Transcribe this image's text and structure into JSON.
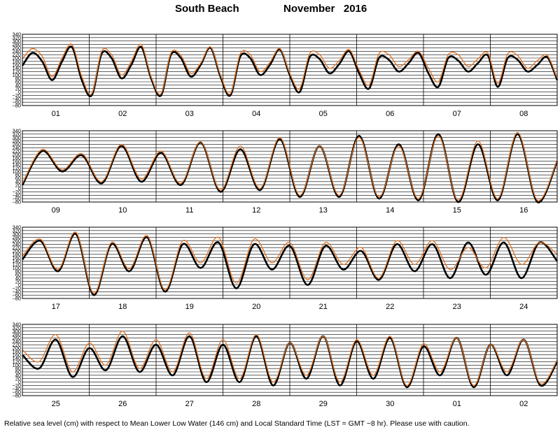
{
  "title": {
    "location": "South Beach",
    "date": "November   2016"
  },
  "footnote": "Relative sea level (cm) with respect to Mean Lower Low Water (146 cm) and Local Standard Time (LST = GMT −8 hr). Please use with caution.",
  "colors": {
    "observed": "#000000",
    "predicted": "#e07020",
    "grid": "#000000"
  },
  "chart_data": {
    "type": "line",
    "ylabel": "",
    "ylim": [
      -80,
      340
    ],
    "yticks": [
      -80,
      -60,
      -40,
      -20,
      0,
      20,
      40,
      60,
      80,
      100,
      120,
      140,
      160,
      180,
      200,
      220,
      240,
      260,
      280,
      300,
      320,
      340
    ],
    "ytick_labels": [
      "−80",
      "−60",
      "−40",
      "−20",
      "0",
      "20",
      "40",
      "60",
      "80",
      "100",
      "120",
      "140",
      "160",
      "180",
      "200",
      "220",
      "240",
      "260",
      "280",
      "300",
      "320",
      "340"
    ],
    "legend": "none",
    "grid": true,
    "series_names": [
      "observed",
      "predicted"
    ],
    "panels": [
      {
        "days": [
          "01",
          "02",
          "03",
          "04",
          "05",
          "06",
          "07",
          "08"
        ],
        "observed": [
          [
            0,
            155
          ],
          [
            1,
            230
          ],
          [
            2,
            180
          ],
          [
            3,
            70
          ],
          [
            4,
            180
          ],
          [
            5,
            265
          ],
          [
            6,
            70
          ],
          [
            7,
            -20
          ],
          [
            8,
            225
          ],
          [
            9,
            200
          ],
          [
            10,
            80
          ],
          [
            11,
            160
          ],
          [
            12,
            265
          ],
          [
            13,
            80
          ],
          [
            14,
            -20
          ],
          [
            15,
            220
          ],
          [
            16,
            200
          ],
          [
            17,
            90
          ],
          [
            18,
            160
          ],
          [
            19,
            260
          ],
          [
            20,
            90
          ],
          [
            21,
            -20
          ],
          [
            22,
            210
          ],
          [
            23,
            200
          ],
          [
            24,
            100
          ],
          [
            25,
            160
          ],
          [
            26,
            250
          ],
          [
            27,
            100
          ],
          [
            28,
            0
          ],
          [
            29,
            205
          ],
          [
            30,
            195
          ],
          [
            31,
            110
          ],
          [
            32,
            165
          ],
          [
            33,
            240
          ],
          [
            34,
            110
          ],
          [
            35,
            20
          ],
          [
            36,
            200
          ],
          [
            37,
            190
          ],
          [
            38,
            120
          ],
          [
            39,
            170
          ],
          [
            40,
            230
          ],
          [
            41,
            110
          ],
          [
            42,
            30
          ],
          [
            43,
            200
          ],
          [
            44,
            185
          ],
          [
            45,
            120
          ],
          [
            46,
            170
          ],
          [
            47,
            215
          ],
          [
            48,
            30
          ],
          [
            49,
            200
          ],
          [
            50,
            190
          ],
          [
            51,
            120
          ],
          [
            52,
            160
          ],
          [
            53,
            205
          ],
          [
            54,
            70
          ]
        ],
        "predicted": [
          [
            0,
            195
          ],
          [
            1,
            255
          ],
          [
            2,
            210
          ],
          [
            3,
            90
          ],
          [
            4,
            200
          ],
          [
            5,
            280
          ],
          [
            6,
            90
          ],
          [
            7,
            -10
          ],
          [
            8,
            240
          ],
          [
            9,
            220
          ],
          [
            10,
            100
          ],
          [
            11,
            180
          ],
          [
            12,
            280
          ],
          [
            13,
            90
          ],
          [
            14,
            -10
          ],
          [
            15,
            230
          ],
          [
            16,
            215
          ],
          [
            17,
            110
          ],
          [
            18,
            170
          ],
          [
            19,
            265
          ],
          [
            20,
            100
          ],
          [
            21,
            -10
          ],
          [
            22,
            225
          ],
          [
            23,
            220
          ],
          [
            24,
            120
          ],
          [
            25,
            175
          ],
          [
            26,
            255
          ],
          [
            27,
            110
          ],
          [
            28,
            20
          ],
          [
            29,
            225
          ],
          [
            30,
            220
          ],
          [
            31,
            140
          ],
          [
            32,
            185
          ],
          [
            33,
            250
          ],
          [
            34,
            130
          ],
          [
            35,
            40
          ],
          [
            36,
            225
          ],
          [
            37,
            220
          ],
          [
            38,
            150
          ],
          [
            39,
            190
          ],
          [
            40,
            240
          ],
          [
            41,
            140
          ],
          [
            42,
            60
          ],
          [
            43,
            220
          ],
          [
            44,
            220
          ],
          [
            45,
            150
          ],
          [
            46,
            195
          ],
          [
            47,
            230
          ],
          [
            48,
            50
          ],
          [
            49,
            225
          ],
          [
            50,
            215
          ],
          [
            51,
            140
          ],
          [
            52,
            185
          ],
          [
            53,
            215
          ],
          [
            54,
            80
          ]
        ]
      },
      {
        "days": [
          "09",
          "10",
          "11",
          "12",
          "13",
          "14",
          "15",
          "16"
        ],
        "observed": [
          [
            0,
            20
          ],
          [
            1,
            220
          ],
          [
            2,
            100
          ],
          [
            3,
            195
          ],
          [
            4,
            30
          ],
          [
            5,
            250
          ],
          [
            6,
            40
          ],
          [
            7,
            210
          ],
          [
            8,
            20
          ],
          [
            9,
            270
          ],
          [
            10,
            -20
          ],
          [
            11,
            230
          ],
          [
            12,
            -10
          ],
          [
            13,
            290
          ],
          [
            14,
            -50
          ],
          [
            15,
            250
          ],
          [
            16,
            -50
          ],
          [
            17,
            310
          ],
          [
            18,
            -60
          ],
          [
            19,
            260
          ],
          [
            20,
            -70
          ],
          [
            21,
            320
          ],
          [
            22,
            -80
          ],
          [
            23,
            260
          ],
          [
            24,
            -70
          ],
          [
            25,
            320
          ],
          [
            26,
            -80
          ],
          [
            27,
            160
          ]
        ],
        "predicted": [
          [
            0,
            30
          ],
          [
            1,
            230
          ],
          [
            2,
            110
          ],
          [
            3,
            205
          ],
          [
            4,
            40
          ],
          [
            5,
            260
          ],
          [
            6,
            55
          ],
          [
            7,
            220
          ],
          [
            8,
            30
          ],
          [
            9,
            275
          ],
          [
            10,
            -10
          ],
          [
            11,
            250
          ],
          [
            12,
            0
          ],
          [
            13,
            300
          ],
          [
            14,
            -40
          ],
          [
            15,
            250
          ],
          [
            16,
            -40
          ],
          [
            17,
            300
          ],
          [
            18,
            -50
          ],
          [
            19,
            250
          ],
          [
            20,
            -60
          ],
          [
            21,
            310
          ],
          [
            22,
            -70
          ],
          [
            23,
            280
          ],
          [
            24,
            -60
          ],
          [
            25,
            330
          ],
          [
            26,
            -70
          ],
          [
            27,
            165
          ]
        ]
      },
      {
        "days": [
          "17",
          "18",
          "19",
          "20",
          "21",
          "22",
          "23",
          "24"
        ],
        "observed": [
          [
            0,
            150
          ],
          [
            1,
            260
          ],
          [
            2,
            80
          ],
          [
            3,
            300
          ],
          [
            4,
            -60
          ],
          [
            5,
            240
          ],
          [
            6,
            80
          ],
          [
            7,
            280
          ],
          [
            8,
            -40
          ],
          [
            9,
            240
          ],
          [
            10,
            100
          ],
          [
            11,
            250
          ],
          [
            12,
            -20
          ],
          [
            13,
            240
          ],
          [
            14,
            90
          ],
          [
            15,
            230
          ],
          [
            16,
            0
          ],
          [
            17,
            230
          ],
          [
            18,
            90
          ],
          [
            19,
            200
          ],
          [
            20,
            30
          ],
          [
            21,
            240
          ],
          [
            22,
            80
          ],
          [
            23,
            240
          ],
          [
            24,
            40
          ],
          [
            25,
            250
          ],
          [
            26,
            60
          ],
          [
            27,
            250
          ],
          [
            28,
            40
          ],
          [
            29,
            250
          ],
          [
            30,
            140
          ]
        ],
        "predicted": [
          [
            0,
            170
          ],
          [
            1,
            270
          ],
          [
            2,
            90
          ],
          [
            3,
            310
          ],
          [
            4,
            -50
          ],
          [
            5,
            250
          ],
          [
            6,
            95
          ],
          [
            7,
            290
          ],
          [
            8,
            -30
          ],
          [
            9,
            260
          ],
          [
            10,
            130
          ],
          [
            11,
            280
          ],
          [
            12,
            10
          ],
          [
            13,
            270
          ],
          [
            14,
            130
          ],
          [
            15,
            250
          ],
          [
            16,
            30
          ],
          [
            17,
            250
          ],
          [
            18,
            120
          ],
          [
            19,
            220
          ],
          [
            20,
            40
          ],
          [
            21,
            260
          ],
          [
            22,
            120
          ],
          [
            23,
            260
          ],
          [
            24,
            90
          ],
          [
            25,
            220
          ],
          [
            26,
            100
          ],
          [
            27,
            280
          ],
          [
            28,
            120
          ],
          [
            29,
            250
          ],
          [
            30,
            180
          ]
        ]
      },
      {
        "days": [
          "25",
          "26",
          "27",
          "28",
          "29",
          "30",
          "01",
          "02"
        ],
        "observed": [
          [
            0,
            160
          ],
          [
            1,
            80
          ],
          [
            2,
            250
          ],
          [
            3,
            30
          ],
          [
            4,
            200
          ],
          [
            5,
            70
          ],
          [
            6,
            270
          ],
          [
            7,
            60
          ],
          [
            8,
            220
          ],
          [
            9,
            40
          ],
          [
            10,
            270
          ],
          [
            11,
            0
          ],
          [
            12,
            220
          ],
          [
            13,
            0
          ],
          [
            14,
            270
          ],
          [
            15,
            -20
          ],
          [
            16,
            230
          ],
          [
            17,
            20
          ],
          [
            18,
            270
          ],
          [
            19,
            -20
          ],
          [
            20,
            240
          ],
          [
            21,
            20
          ],
          [
            22,
            260
          ],
          [
            23,
            -30
          ],
          [
            24,
            210
          ],
          [
            25,
            40
          ],
          [
            26,
            260
          ],
          [
            27,
            -30
          ],
          [
            28,
            220
          ],
          [
            29,
            40
          ],
          [
            30,
            250
          ],
          [
            31,
            -20
          ],
          [
            32,
            120
          ]
        ],
        "predicted": [
          [
            0,
            190
          ],
          [
            1,
            120
          ],
          [
            2,
            280
          ],
          [
            3,
            60
          ],
          [
            4,
            230
          ],
          [
            5,
            100
          ],
          [
            6,
            300
          ],
          [
            7,
            80
          ],
          [
            8,
            250
          ],
          [
            9,
            60
          ],
          [
            10,
            290
          ],
          [
            11,
            20
          ],
          [
            12,
            250
          ],
          [
            13,
            20
          ],
          [
            14,
            280
          ],
          [
            15,
            0
          ],
          [
            16,
            230
          ],
          [
            17,
            40
          ],
          [
            18,
            270
          ],
          [
            19,
            0
          ],
          [
            20,
            250
          ],
          [
            21,
            40
          ],
          [
            22,
            270
          ],
          [
            23,
            -20
          ],
          [
            24,
            225
          ],
          [
            25,
            60
          ],
          [
            26,
            260
          ],
          [
            27,
            -20
          ],
          [
            28,
            220
          ],
          [
            29,
            60
          ],
          [
            30,
            250
          ],
          [
            31,
            -10
          ],
          [
            32,
            130
          ]
        ]
      }
    ]
  }
}
